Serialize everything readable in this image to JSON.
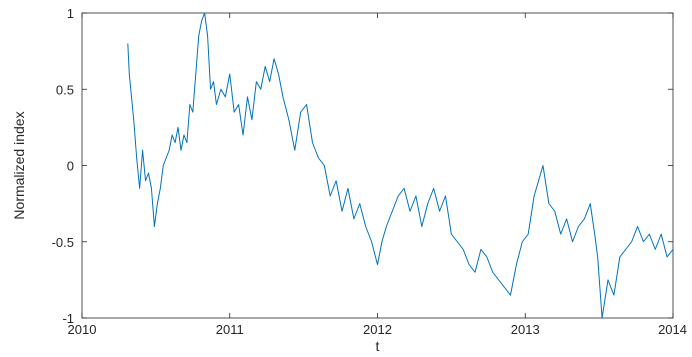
{
  "chart_data": {
    "type": "line",
    "title": "",
    "xlabel": "t",
    "ylabel": "Normalized index",
    "xlim": [
      2010,
      2014
    ],
    "ylim": [
      -1,
      1
    ],
    "xticks": [
      2010,
      2011,
      2012,
      2013,
      2014
    ],
    "xtick_labels": [
      "2010",
      "2011",
      "2012",
      "2013",
      "2014"
    ],
    "yticks": [
      -1,
      -0.5,
      0,
      0.5,
      1
    ],
    "ytick_labels": [
      "-1",
      "-0.5",
      "0",
      "0.5",
      "1"
    ],
    "grid": false,
    "box": true,
    "colors": {
      "line": "#0072BD",
      "axes": "#262626",
      "background": "#ffffff"
    },
    "series": [
      {
        "x": [
          2010.31,
          2010.32,
          2010.33,
          2010.34,
          2010.35,
          2010.37,
          2010.39,
          2010.41,
          2010.43,
          2010.45,
          2010.47,
          2010.49,
          2010.51,
          2010.53,
          2010.55,
          2010.57,
          2010.59,
          2010.61,
          2010.63,
          2010.65,
          2010.67,
          2010.69,
          2010.71,
          2010.73,
          2010.75,
          2010.77,
          2010.79,
          2010.81,
          2010.83,
          2010.85,
          2010.87,
          2010.89,
          2010.91,
          2010.94,
          2010.97,
          2011.0,
          2011.03,
          2011.06,
          2011.09,
          2011.12,
          2011.15,
          2011.18,
          2011.21,
          2011.24,
          2011.27,
          2011.3,
          2011.33,
          2011.36,
          2011.4,
          2011.44,
          2011.48,
          2011.52,
          2011.56,
          2011.6,
          2011.64,
          2011.68,
          2011.72,
          2011.76,
          2011.8,
          2011.84,
          2011.88,
          2011.92,
          2011.96,
          2012.0,
          2012.03,
          2012.06,
          2012.1,
          2012.14,
          2012.18,
          2012.22,
          2012.26,
          2012.3,
          2012.34,
          2012.38,
          2012.42,
          2012.46,
          2012.5,
          2012.54,
          2012.58,
          2012.62,
          2012.66,
          2012.7,
          2012.74,
          2012.78,
          2012.82,
          2012.86,
          2012.9,
          2012.94,
          2012.98,
          2013.02,
          2013.06,
          2013.09,
          2013.12,
          2013.16,
          2013.2,
          2013.24,
          2013.28,
          2013.32,
          2013.36,
          2013.4,
          2013.44,
          2013.47,
          2013.49,
          2013.52,
          2013.56,
          2013.6,
          2013.64,
          2013.68,
          2013.72,
          2013.76,
          2013.8,
          2013.84,
          2013.88,
          2013.92,
          2013.96,
          2014.0
        ],
        "y": [
          0.8,
          0.6,
          0.5,
          0.4,
          0.3,
          0.05,
          -0.15,
          0.1,
          -0.1,
          -0.05,
          -0.15,
          -0.4,
          -0.25,
          -0.15,
          0.0,
          0.05,
          0.1,
          0.2,
          0.15,
          0.25,
          0.1,
          0.2,
          0.15,
          0.4,
          0.35,
          0.6,
          0.85,
          0.95,
          1.0,
          0.85,
          0.5,
          0.55,
          0.4,
          0.5,
          0.45,
          0.6,
          0.35,
          0.4,
          0.2,
          0.45,
          0.3,
          0.55,
          0.5,
          0.65,
          0.55,
          0.7,
          0.6,
          0.45,
          0.3,
          0.1,
          0.35,
          0.4,
          0.15,
          0.05,
          0.0,
          -0.2,
          -0.1,
          -0.3,
          -0.15,
          -0.35,
          -0.25,
          -0.4,
          -0.5,
          -0.65,
          -0.5,
          -0.4,
          -0.3,
          -0.2,
          -0.15,
          -0.3,
          -0.2,
          -0.4,
          -0.25,
          -0.15,
          -0.3,
          -0.2,
          -0.45,
          -0.5,
          -0.55,
          -0.65,
          -0.7,
          -0.55,
          -0.6,
          -0.7,
          -0.75,
          -0.8,
          -0.85,
          -0.65,
          -0.5,
          -0.45,
          -0.2,
          -0.1,
          0.0,
          -0.25,
          -0.3,
          -0.45,
          -0.35,
          -0.5,
          -0.4,
          -0.35,
          -0.25,
          -0.45,
          -0.6,
          -1.0,
          -0.75,
          -0.85,
          -0.6,
          -0.55,
          -0.5,
          -0.4,
          -0.5,
          -0.45,
          -0.55,
          -0.45,
          -0.6,
          -0.55
        ]
      }
    ]
  }
}
